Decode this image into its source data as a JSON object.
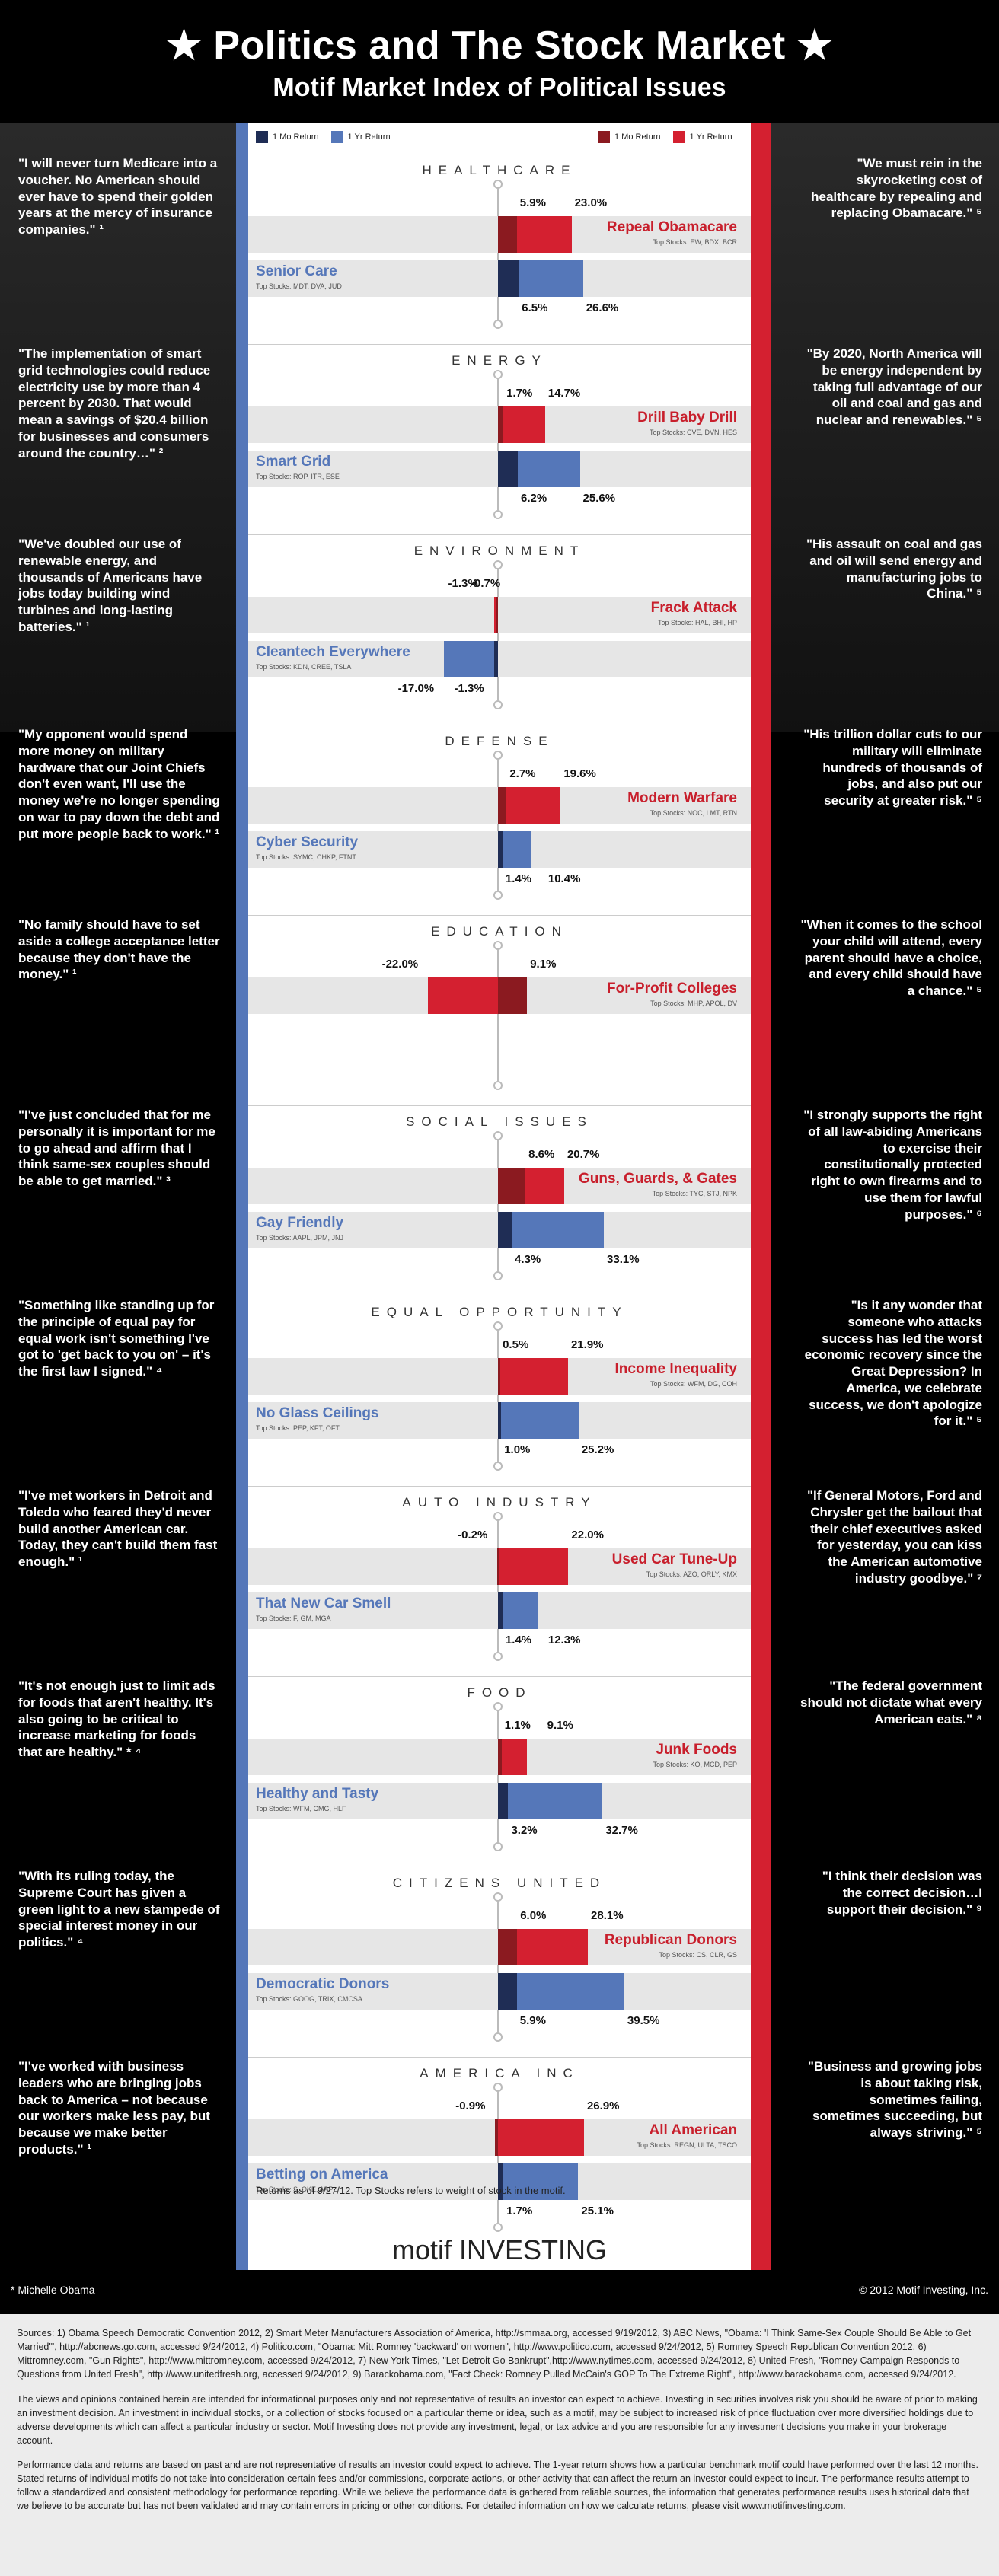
{
  "header": {
    "title": "★ Politics and The Stock Market ★",
    "subtitle": "Motif Market Index of Political Issues"
  },
  "legend": {
    "left": [
      {
        "label": "1 Mo Return",
        "color": "#1f2d55"
      },
      {
        "label": "1 Yr Return",
        "color": "#5577b9"
      }
    ],
    "right": [
      {
        "label": "1 Mo Return",
        "color": "#8b1a20"
      },
      {
        "label": "1 Yr Return",
        "color": "#d42030"
      }
    ]
  },
  "colors": {
    "dem_1mo": "#1f2d55",
    "dem_1yr": "#5577b9",
    "rep_1mo": "#8b1a20",
    "rep_1yr": "#d42030"
  },
  "chart_data": {
    "type": "bar",
    "unit": "%",
    "sections": [
      {
        "title": "HEALTHCARE",
        "rep": {
          "name": "Repeal Obamacare",
          "top": "Top Stocks: EW, BDX, BCR",
          "mo": 5.9,
          "yr": 23.0,
          "mo_label": "5.9%",
          "yr_label": "23.0%"
        },
        "dem": {
          "name": "Senior Care",
          "top": "Top Stocks: MDT, DVA, JUD",
          "mo": 6.5,
          "yr": 26.6,
          "mo_label": "6.5%",
          "yr_label": "26.6%"
        }
      },
      {
        "title": "ENERGY",
        "rep": {
          "name": "Drill Baby Drill",
          "top": "Top Stocks: CVE, DVN, HES",
          "mo": 1.7,
          "yr": 14.7,
          "mo_label": "1.7%",
          "yr_label": "14.7%"
        },
        "dem": {
          "name": "Smart Grid",
          "top": "Top Stocks: ROP, ITR, ESE",
          "mo": 6.2,
          "yr": 25.6,
          "mo_label": "6.2%",
          "yr_label": "25.6%"
        }
      },
      {
        "title": "ENVIRONMENT",
        "rep": {
          "name": "Frack Attack",
          "top": "Top Stocks: HAL, BHI, HP",
          "mo": -0.7,
          "yr": -1.3,
          "mo_label": "-0.7%",
          "yr_label": "-1.3%"
        },
        "dem": {
          "name": "Cleantech Everywhere",
          "top": "Top Stocks: KDN, CREE, TSLA",
          "mo": -1.3,
          "yr": -17.0,
          "mo_label": "-1.3%",
          "yr_label": "-17.0%"
        }
      },
      {
        "title": "DEFENSE",
        "rep": {
          "name": "Modern Warfare",
          "top": "Top Stocks: NOC, LMT, RTN",
          "mo": 2.7,
          "yr": 19.6,
          "mo_label": "2.7%",
          "yr_label": "19.6%"
        },
        "dem": {
          "name": "Cyber Security",
          "top": "Top Stocks: SYMC, CHKP, FTNT",
          "mo": 1.4,
          "yr": 10.4,
          "mo_label": "1.4%",
          "yr_label": "10.4%"
        }
      },
      {
        "title": "EDUCATION",
        "rep": {
          "name": "For-Profit Colleges",
          "top": "Top Stocks: MHP, APOL, DV",
          "mo": 9.1,
          "yr": -22.0,
          "mo_label": "9.1%",
          "yr_label": "-22.0%"
        },
        "dem": null
      },
      {
        "title": "SOCIAL ISSUES",
        "rep": {
          "name": "Guns, Guards, & Gates",
          "top": "Top Stocks: TYC, STJ, NPK",
          "mo": 8.6,
          "yr": 20.7,
          "mo_label": "8.6%",
          "yr_label": "20.7%"
        },
        "dem": {
          "name": "Gay Friendly",
          "top": "Top Stocks: AAPL, JPM, JNJ",
          "mo": 4.3,
          "yr": 33.1,
          "mo_label": "4.3%",
          "yr_label": "33.1%"
        }
      },
      {
        "title": "EQUAL OPPORTUNITY",
        "rep": {
          "name": "Income Inequality",
          "top": "Top Stocks: WFM, DG, COH",
          "mo": 0.5,
          "yr": 21.9,
          "mo_label": "0.5%",
          "yr_label": "21.9%"
        },
        "dem": {
          "name": "No Glass Ceilings",
          "top": "Top Stocks: PEP, KFT, OFT",
          "mo": 1.0,
          "yr": 25.2,
          "mo_label": "1.0%",
          "yr_label": "25.2%"
        }
      },
      {
        "title": "AUTO INDUSTRY",
        "rep": {
          "name": "Used Car Tune-Up",
          "top": "Top Stocks: AZO, ORLY, KMX",
          "mo": -0.2,
          "yr": 22.0,
          "mo_label": "-0.2%",
          "yr_label": "22.0%"
        },
        "dem": {
          "name": "That New Car Smell",
          "top": "Top Stocks: F, GM, MGA",
          "mo": 1.4,
          "yr": 12.3,
          "mo_label": "1.4%",
          "yr_label": "12.3%"
        }
      },
      {
        "title": "FOOD",
        "rep": {
          "name": "Junk Foods",
          "top": "Top Stocks: KO, MCD, PEP",
          "mo": 1.1,
          "yr": 9.1,
          "mo_label": "1.1%",
          "yr_label": "9.1%"
        },
        "dem": {
          "name": "Healthy and Tasty",
          "top": "Top Stocks: WFM, CMG, HLF",
          "mo": 3.2,
          "yr": 32.7,
          "mo_label": "3.2%",
          "yr_label": "32.7%"
        }
      },
      {
        "title": "CITIZENS UNITED",
        "rep": {
          "name": "Republican Donors",
          "top": "Top Stocks: CS, CLR, GS",
          "mo": 6.0,
          "yr": 28.1,
          "mo_label": "6.0%",
          "yr_label": "28.1%"
        },
        "dem": {
          "name": "Democratic Donors",
          "top": "Top Stocks: GOOG, TRIX, CMCSA",
          "mo": 5.9,
          "yr": 39.5,
          "mo_label": "5.9%",
          "yr_label": "39.5%"
        }
      },
      {
        "title": "AMERICA INC",
        "rep": {
          "name": "All American",
          "top": "Top Stocks: REGN, ULTA, TSCO",
          "mo": -0.9,
          "yr": 26.9,
          "mo_label": "-0.9%",
          "yr_label": "26.9%"
        },
        "dem": {
          "name": "Betting on America",
          "top": "Top Stocks: S, OKE, AAPL",
          "mo": 1.7,
          "yr": 25.1,
          "mo_label": "1.7%",
          "yr_label": "25.1%"
        }
      }
    ]
  },
  "quotes": {
    "left": [
      "\"I will never turn Medicare into a voucher. No American should ever have to spend their golden years at the mercy of insurance companies.\" ¹",
      "\"The implementation of smart grid technologies could reduce electricity use by more than 4 percent by 2030. That would mean a savings of $20.4 billion for businesses and consumers around the country…\" ²",
      "\"We've doubled our use of renewable energy, and thousands of Americans have jobs today building wind turbines and long-lasting batteries.\" ¹",
      "\"My opponent would spend more money on military hardware that our Joint Chiefs don't even want, I'll use the money we're no longer spending on war to pay down the debt and put more people back to work.\" ¹",
      "\"No family should have to set aside a college acceptance letter because they don't have the money.\" ¹",
      "\"I've just concluded that for me personally it is important for me to go ahead and affirm that I think same-sex couples should be able to get married.\" ³",
      "\"Something like standing up for the principle of equal pay for equal work isn't something I've got to 'get back to you on' – it's the first law I signed.\" ⁴",
      "\"I've met workers in Detroit and Toledo who feared they'd never build another American car. Today, they can't build them fast enough.\" ¹",
      "\"It's not enough just to limit ads for foods that aren't healthy. It's also going to be critical to increase marketing for foods that are healthy.\" * ⁴",
      "\"With its ruling today, the Supreme Court has given a green light to a new stampede of special interest money in our politics.\" ⁴",
      "\"I've worked with business leaders who are bringing jobs back to America – not because our workers make less pay, but because we make better products.\" ¹"
    ],
    "right": [
      "\"We must rein in the skyrocketing cost of healthcare by repealing and replacing Obamacare.\" ⁵",
      "\"By 2020, North America will be energy independent by taking full advantage of our oil and coal and gas and nuclear and renewables.\" ⁵",
      "\"His assault on coal and gas and oil will send energy and manufacturing jobs to China.\" ⁵",
      "\"His trillion dollar cuts to our military will eliminate hundreds of thousands of jobs, and also put our security at greater risk.\" ⁵",
      "\"When it comes to the school your child will attend, every parent should have a choice, and every child should have a chance.\" ⁵",
      "\"I strongly supports the right of all law-abiding Americans to exercise their constitutionally protected right to own firearms and to use them for lawful purposes.\" ⁶",
      "\"Is it any wonder that someone who attacks success has led the worst economic recovery since the Great Depression? In America, we celebrate success, we don't apologize for it.\" ⁵",
      "\"If General Motors, Ford and Chrysler get the bailout that their chief executives asked for yesterday, you can kiss the American automotive industry goodbye.\" ⁷",
      "\"The federal government should not dictate what every American eats.\" ⁸",
      "\"I think their decision was the correct decision…I support their decision.\" ⁹",
      "\"Business and growing jobs is about taking risk, sometimes failing, sometimes succeeding, but always striving.\" ⁵"
    ]
  },
  "footnote": "Returns as of 9/27/12. Top Stocks refers to weight of stock in the motif.",
  "logo": "motif INVESTING",
  "footer": {
    "left": "* Michelle Obama",
    "right": "© 2012 Motif Investing, Inc."
  },
  "bottom": {
    "sources": "Sources: 1) Obama Speech Democratic Convention 2012, 2) Smart Meter Manufacturers Association of America, http://smmaa.org, accessed 9/19/2012, 3) ABC News, \"Obama: 'I Think Same-Sex Couple Should Be Able to Get Married'\", http://abcnews.go.com, accessed 9/24/2012, 4) Politico.com, \"Obama: Mitt Romney 'backward' on women\", http://www.politico.com, accessed 9/24/2012, 5) Romney Speech Republican Convention 2012, 6) Mittromney.com, \"Gun Rights\", http://www.mittromney.com, accessed 9/24/2012, 7) New York Times, \"Let Detroit Go Bankrupt\",http://www.nytimes.com, accessed 9/24/2012, 8) United Fresh, \"Romney Campaign Responds to Questions from United Fresh\", http://www.unitedfresh.org, accessed 9/24/2012, 9) Barackobama.com, \"Fact Check: Romney Pulled McCain's GOP To The Extreme Right\", http://www.barackobama.com, accessed 9/24/2012.",
    "disclaimer": "The views and opinions contained herein are intended for informational purposes only and not representative of results an investor can expect to achieve. Investing in securities involves risk you should be aware of prior to making an investment decision. An investment in individual stocks, or a collection of stocks focused on a particular theme or idea, such as a motif, may be subject to increased risk of price fluctuation over more diversified holdings due to adverse developments which can affect a particular industry or sector. Motif Investing does not provide any investment, legal, or tax advice and you are responsible for any investment decisions you make in your brokerage account.",
    "performance": "Performance data and returns are based on past and are not representative of results an investor could expect to achieve. The 1-year return shows how a particular benchmark motif could have performed over the last 12 months. Stated returns of individual motifs do not take into consideration certain fees and/or commissions, corporate actions, or other activity that can affect the return an investor could expect to incur. The performance results attempt to follow a standardized and consistent methodology for performance reporting. While we believe the performance data is gathered from reliable sources, the information that generates performance results uses historical data that we believe to be accurate but has not been validated and may contain errors in pricing or other conditions. For detailed information on how we calculate returns, please visit www.motifinvesting.com."
  }
}
